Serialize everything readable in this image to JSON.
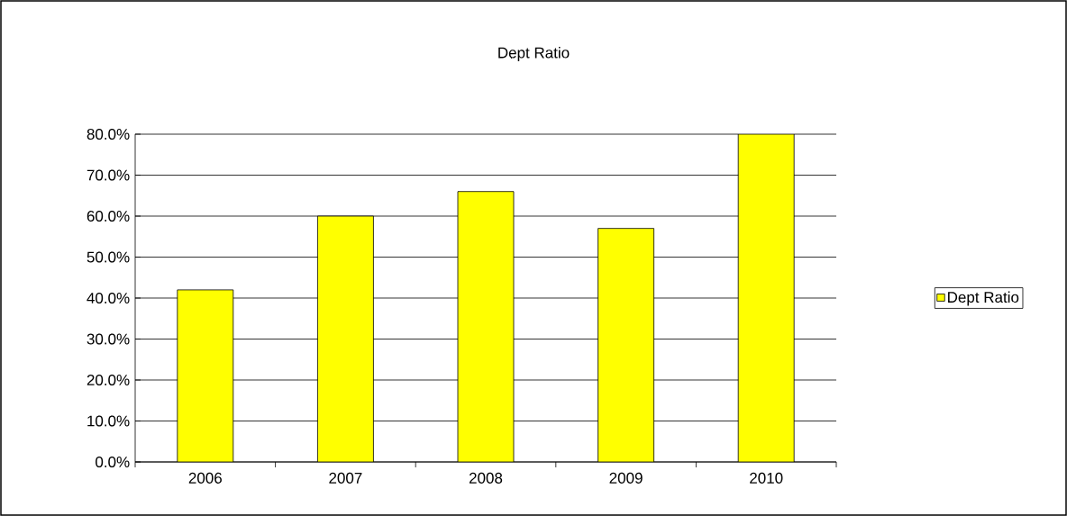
{
  "chart_data": {
    "type": "bar",
    "title": "Dept Ratio",
    "categories": [
      "2006",
      "2007",
      "2008",
      "2009",
      "2010"
    ],
    "series": [
      {
        "name": "Dept Ratio",
        "color": "#ffff00",
        "values": [
          42,
          60,
          66,
          57,
          80
        ]
      }
    ],
    "ylim": [
      0,
      80
    ],
    "yticks": [
      {
        "value": 0,
        "label": "0.0%"
      },
      {
        "value": 10,
        "label": "10.0%"
      },
      {
        "value": 20,
        "label": "20.0%"
      },
      {
        "value": 30,
        "label": "30.0%"
      },
      {
        "value": 40,
        "label": "40.0%"
      },
      {
        "value": 50,
        "label": "50.0%"
      },
      {
        "value": 60,
        "label": "60.0%"
      },
      {
        "value": 70,
        "label": "70.0%"
      },
      {
        "value": 80,
        "label": "80.0%"
      }
    ],
    "grid": "y",
    "legend": "right"
  }
}
